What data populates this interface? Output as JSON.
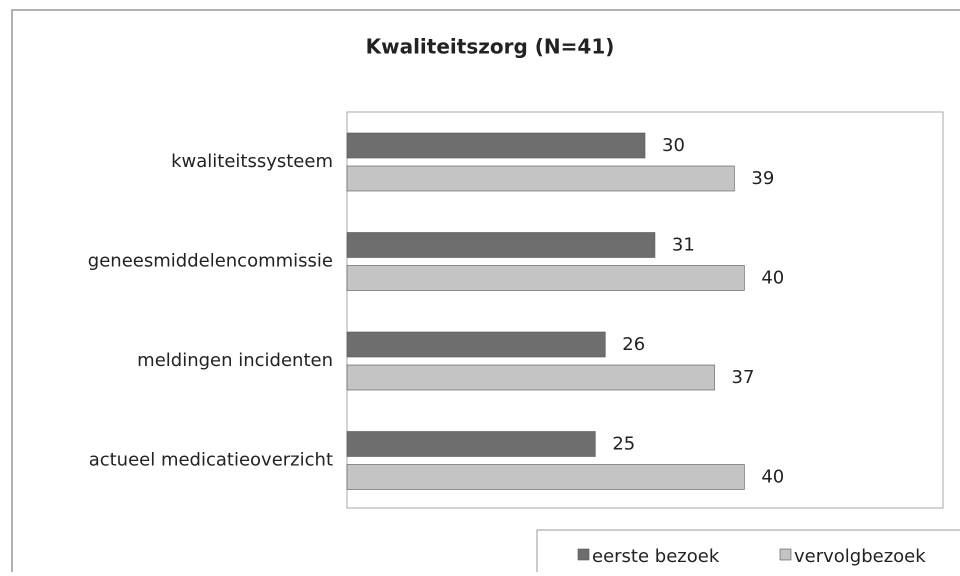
{
  "chart_data": {
    "type": "bar",
    "orientation": "horizontal",
    "title": "Kwaliteitszorg (N=41)",
    "categories": [
      "kwaliteitssysteem",
      "geneesmiddelencommissie",
      "meldingen incidenten",
      "actueel medicatieoverzicht"
    ],
    "series": [
      {
        "name": "eerste bezoek",
        "color": "#6e6e6e",
        "values": [
          30,
          31,
          26,
          25
        ]
      },
      {
        "name": "vervolgbezoek",
        "color": "#c4c4c4",
        "values": [
          39,
          40,
          37,
          40
        ]
      }
    ],
    "xlim": [
      0,
      60
    ],
    "legend": "bottom-right"
  }
}
